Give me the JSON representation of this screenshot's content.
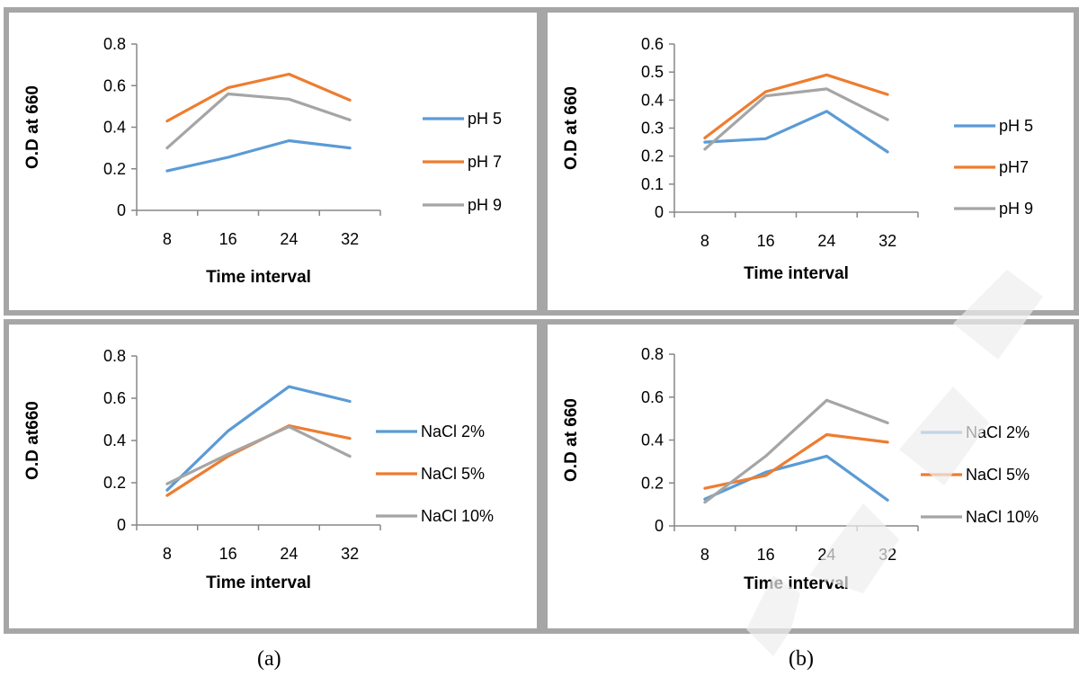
{
  "colors": {
    "blue": "#5b9bd5",
    "orange": "#ed7d31",
    "gray": "#a5a5a5",
    "axis": "#878787"
  },
  "panel_labels": [
    "(a)",
    "(b)"
  ],
  "chart_data": [
    {
      "type": "line",
      "x": [
        "8",
        "16",
        "24",
        "32"
      ],
      "xlabel": "Time interval",
      "ylabel": "O.D at 660",
      "ylim": [
        0,
        0.8
      ],
      "yticks": [
        "0",
        "0.2",
        "0.4",
        "0.6",
        "0.8"
      ],
      "legend": "right",
      "series": [
        {
          "name": "pH 5",
          "color": "#5b9bd5",
          "values": [
            0.19,
            0.255,
            0.335,
            0.3
          ]
        },
        {
          "name": "pH 7",
          "color": "#ed7d31",
          "values": [
            0.43,
            0.59,
            0.655,
            0.53
          ]
        },
        {
          "name": "pH 9",
          "color": "#a5a5a5",
          "values": [
            0.3,
            0.56,
            0.535,
            0.435
          ]
        }
      ]
    },
    {
      "type": "line",
      "x": [
        "8",
        "16",
        "24",
        "32"
      ],
      "xlabel": "Time interval",
      "ylabel": "O.D at 660",
      "ylim": [
        0,
        0.6
      ],
      "yticks": [
        "0",
        "0.1",
        "0.2",
        "0.3",
        "0.4",
        "0.5",
        "0.6"
      ],
      "legend": "right",
      "series": [
        {
          "name": "pH 5",
          "color": "#5b9bd5",
          "values": [
            0.25,
            0.262,
            0.36,
            0.215
          ]
        },
        {
          "name": "pH7",
          "color": "#ed7d31",
          "values": [
            0.265,
            0.43,
            0.49,
            0.42
          ]
        },
        {
          "name": "pH 9",
          "color": "#a5a5a5",
          "values": [
            0.225,
            0.415,
            0.44,
            0.33
          ]
        }
      ]
    },
    {
      "type": "line",
      "x": [
        "8",
        "16",
        "24",
        "32"
      ],
      "xlabel": "Time interval",
      "ylabel": "O.D at660",
      "ylim": [
        0,
        0.8
      ],
      "yticks": [
        "0",
        "0.2",
        "0.4",
        "0.6",
        "0.8"
      ],
      "legend": "right",
      "series": [
        {
          "name": "NaCl 2%",
          "color": "#5b9bd5",
          "values": [
            0.165,
            0.445,
            0.655,
            0.585
          ]
        },
        {
          "name": "NaCl 5%",
          "color": "#ed7d31",
          "values": [
            0.14,
            0.325,
            0.47,
            0.41
          ]
        },
        {
          "name": "NaCl 10%",
          "color": "#a5a5a5",
          "values": [
            0.195,
            0.335,
            0.465,
            0.325
          ]
        }
      ]
    },
    {
      "type": "line",
      "x": [
        "8",
        "16",
        "24",
        "32"
      ],
      "xlabel": "Time interval",
      "ylabel": "O.D at 660",
      "ylim": [
        0,
        0.8
      ],
      "yticks": [
        "0",
        "0.2",
        "0.4",
        "0.6",
        "0.8"
      ],
      "legend": "right",
      "series": [
        {
          "name": "NaCl 2%",
          "color": "#5b9bd5",
          "values": [
            0.125,
            0.25,
            0.325,
            0.12
          ]
        },
        {
          "name": "NaCl 5%",
          "color": "#ed7d31",
          "values": [
            0.175,
            0.235,
            0.425,
            0.39
          ]
        },
        {
          "name": "NaCl 10%",
          "color": "#a5a5a5",
          "values": [
            0.11,
            0.325,
            0.585,
            0.48
          ]
        }
      ]
    }
  ]
}
